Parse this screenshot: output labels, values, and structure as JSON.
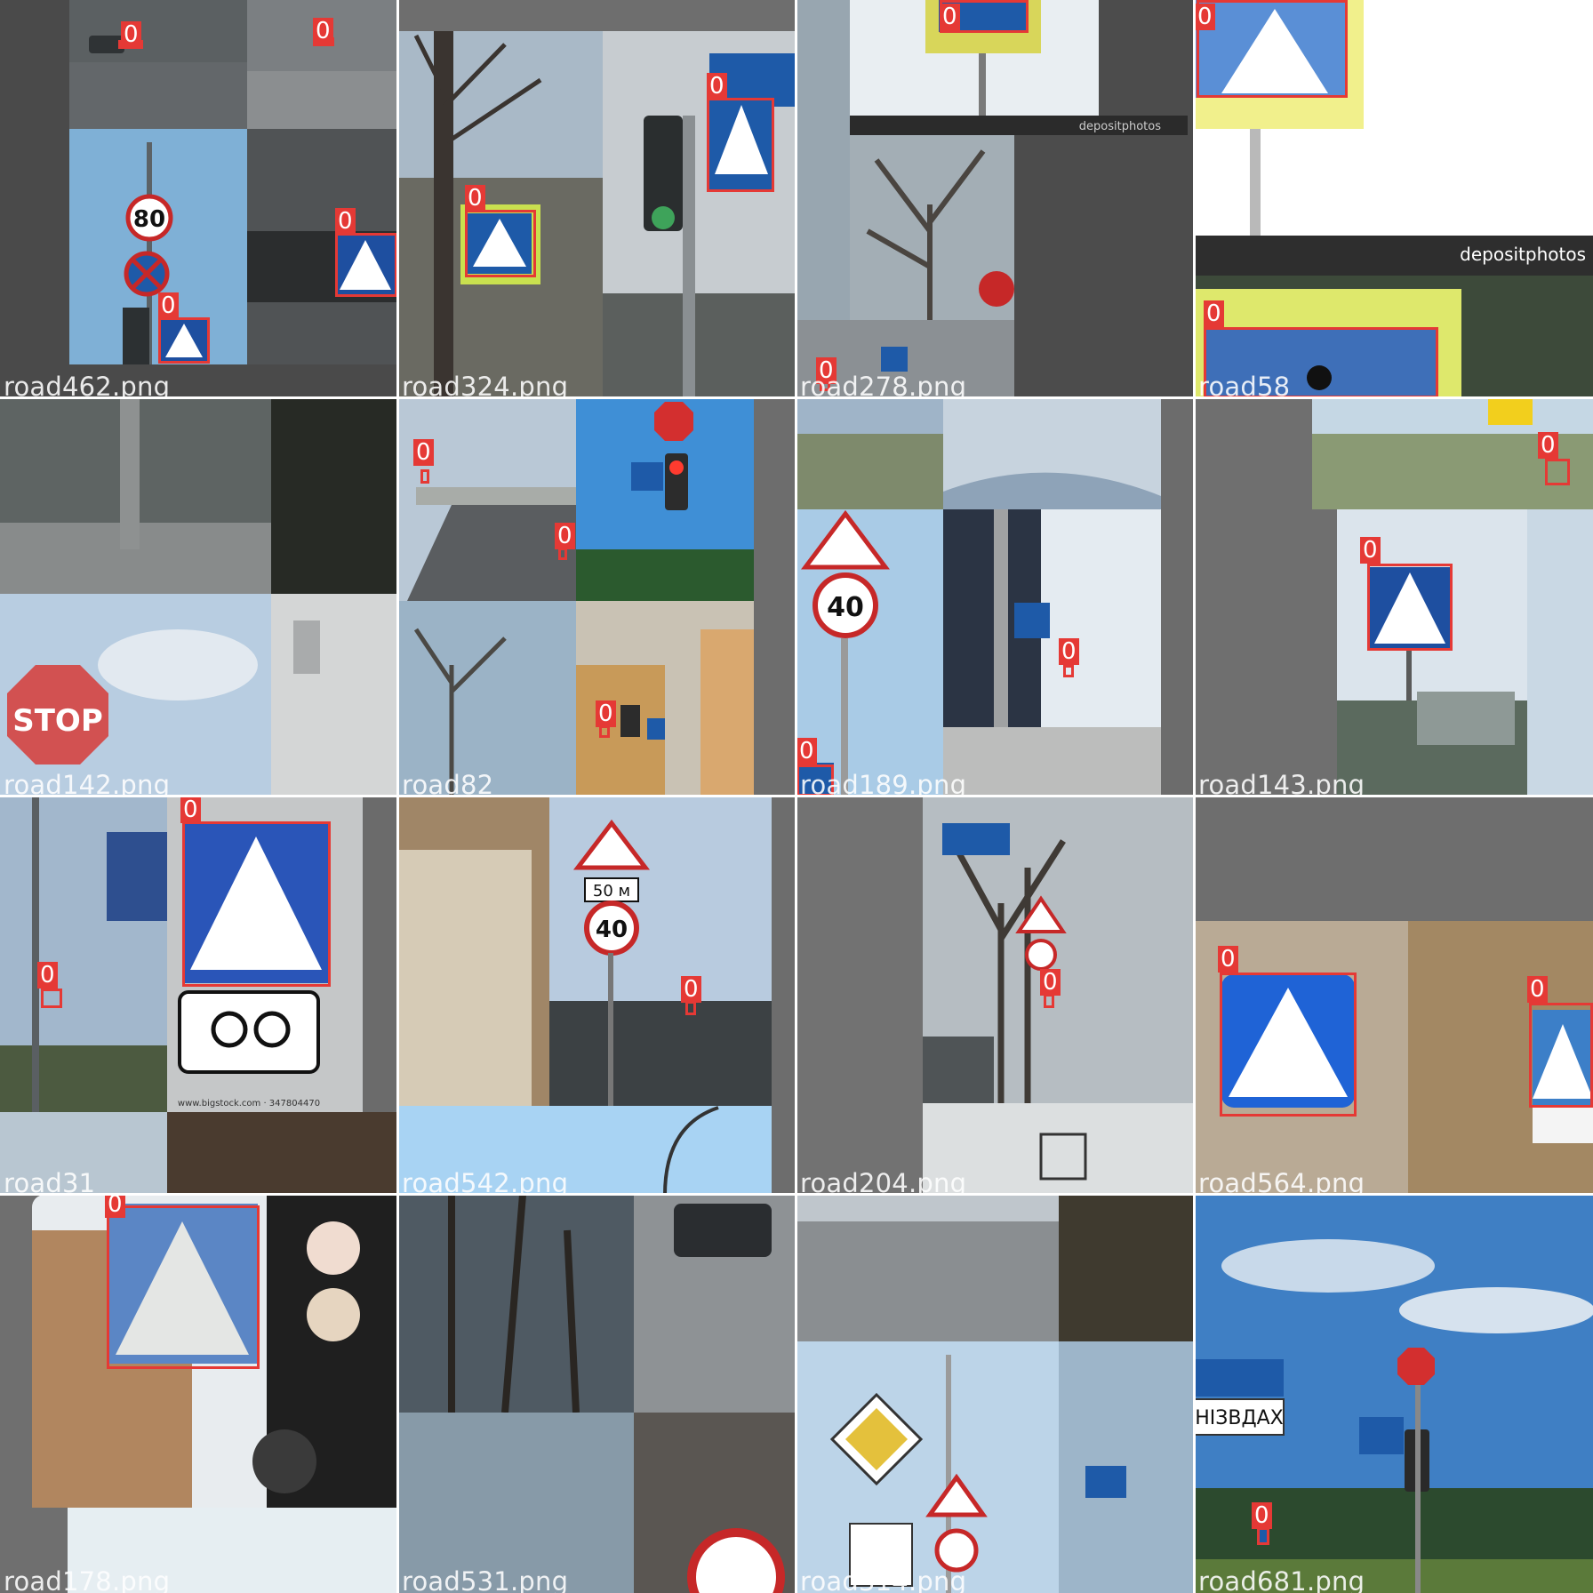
{
  "colors": {
    "box": "#e53935",
    "background": "#727272",
    "label_text": "#ffffff"
  },
  "tiles": [
    {
      "file": "road462.png",
      "detections": [
        {
          "label": "0"
        },
        {
          "label": "0"
        },
        {
          "label": "0"
        },
        {
          "label": "0"
        }
      ]
    },
    {
      "file": "road324.png",
      "detections": [
        {
          "label": "0"
        },
        {
          "label": "0"
        }
      ]
    },
    {
      "file": "road278.png",
      "detections": [
        {
          "label": "0"
        },
        {
          "label": "0"
        }
      ]
    },
    {
      "file": "road58",
      "detections": [
        {
          "label": "0"
        },
        {
          "label": "0"
        }
      ]
    },
    {
      "file": "road142.png",
      "detections": []
    },
    {
      "file": "road82",
      "detections": [
        {
          "label": "0"
        },
        {
          "label": "0"
        },
        {
          "label": "0"
        }
      ]
    },
    {
      "file": "road189.png",
      "detections": [
        {
          "label": "0"
        },
        {
          "label": "0"
        }
      ]
    },
    {
      "file": "road143.png",
      "detections": [
        {
          "label": "0"
        },
        {
          "label": "0"
        }
      ]
    },
    {
      "file": "road31",
      "detections": [
        {
          "label": "0"
        },
        {
          "label": "0"
        }
      ]
    },
    {
      "file": "road542.png",
      "detections": [
        {
          "label": "0"
        }
      ]
    },
    {
      "file": "road204.png",
      "detections": [
        {
          "label": "0"
        }
      ]
    },
    {
      "file": "road564.png",
      "detections": [
        {
          "label": "0"
        },
        {
          "label": "0"
        }
      ]
    },
    {
      "file": "road178.png",
      "detections": [
        {
          "label": "0"
        }
      ]
    },
    {
      "file": "road531.png",
      "detections": []
    },
    {
      "file": "road314.png",
      "detections": []
    },
    {
      "file": "road681.png",
      "detections": [
        {
          "label": "0"
        }
      ]
    }
  ],
  "sign_text": {
    "speed_80": "80",
    "speed_40": "40",
    "stop": "STOP",
    "distance_50m": "50 м",
    "watermark": "depositphotos",
    "bigstock": "www.bigstock.com · 347804470",
    "street_label": "НІЗВДАХ"
  }
}
